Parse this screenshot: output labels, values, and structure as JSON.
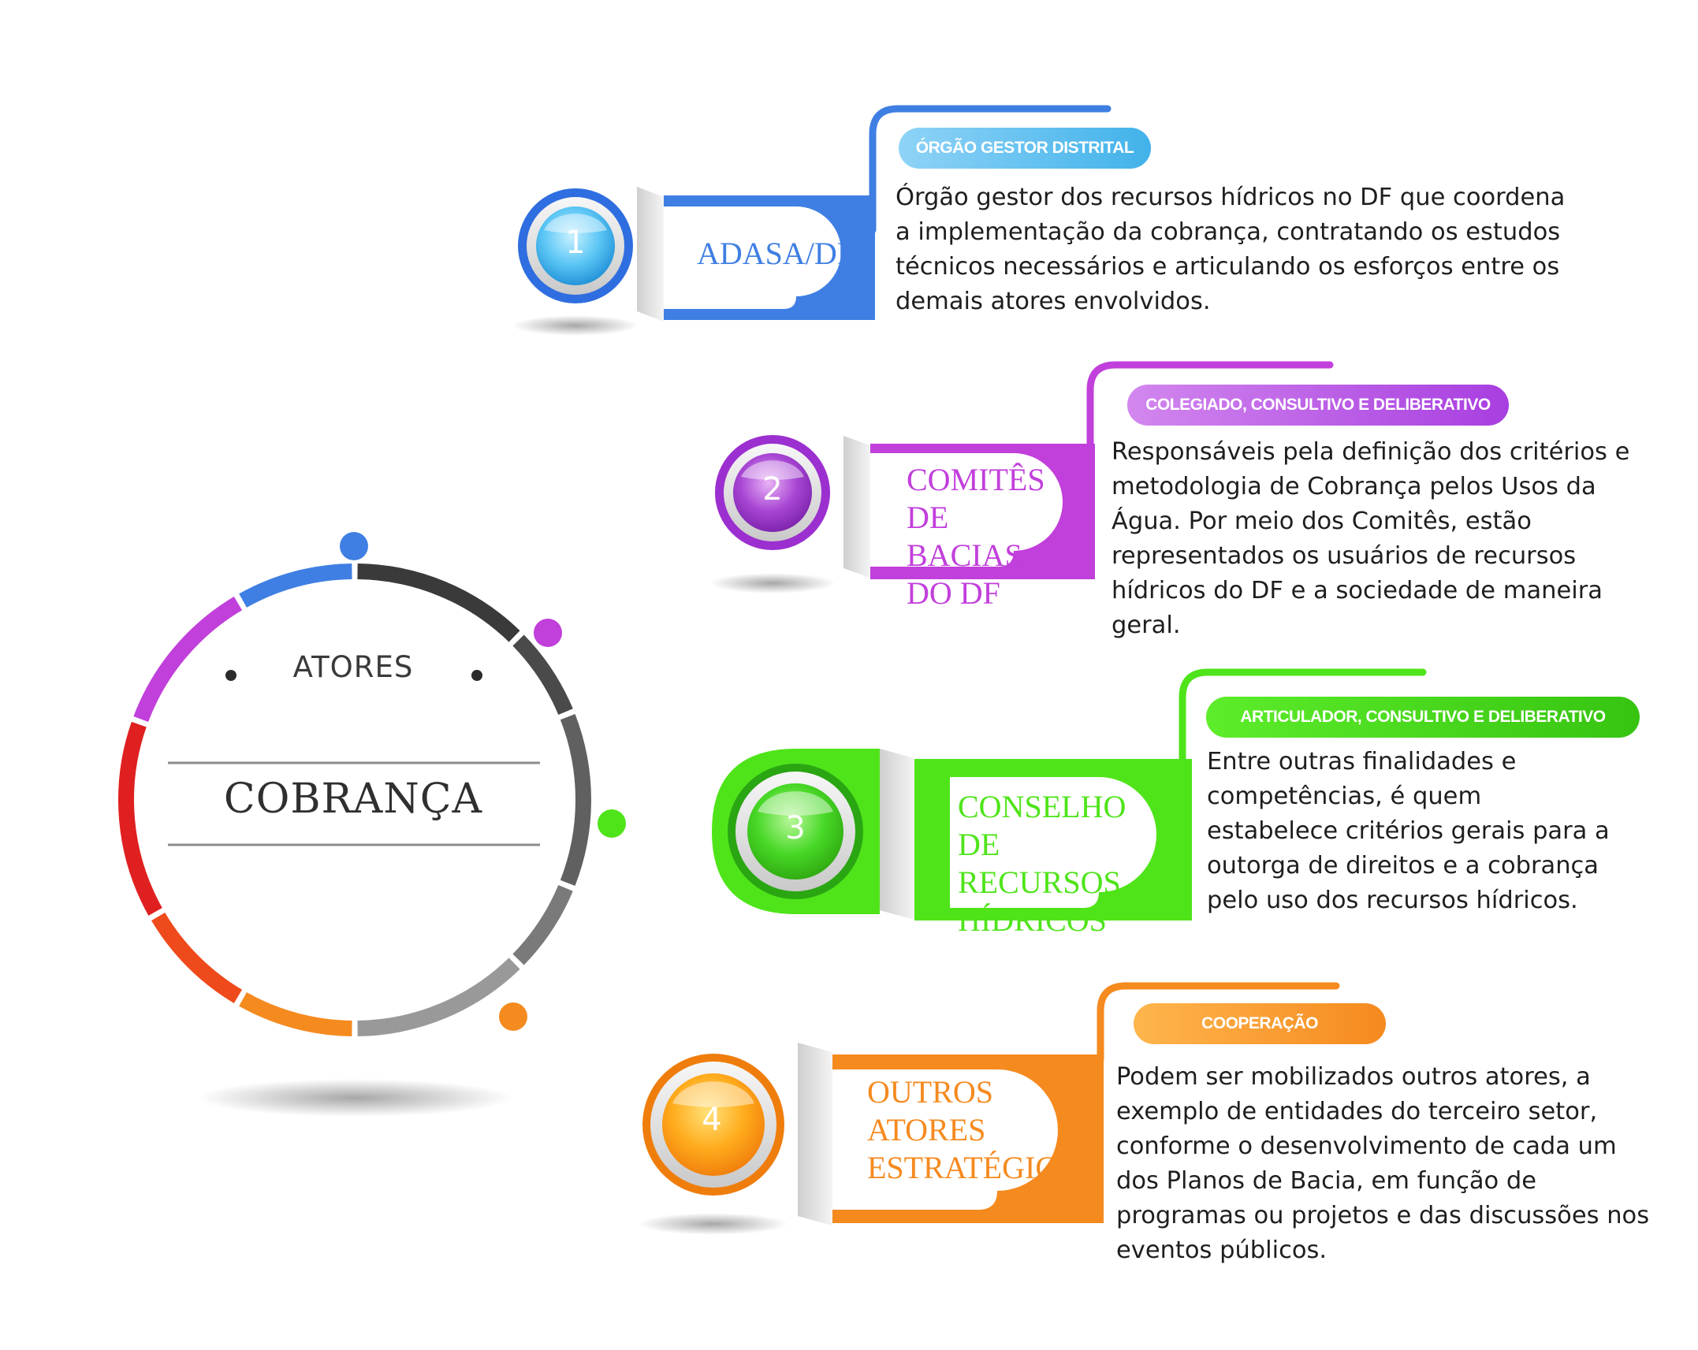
{
  "center": {
    "title": "ATORES",
    "main": "COBRANÇA"
  },
  "actors": [
    {
      "number": "1",
      "label": "ADASA/DF",
      "badge": "ÓRGÃO GESTOR DISTRITAL",
      "description": "Órgão gestor dos recursos hídricos no DF que coordena a implementação da cobrança, contratando os estudos técnicos necessários e articulando os esforços entre os demais atores envolvidos.",
      "color": "#3f7fe3"
    },
    {
      "number": "2",
      "label": "COMITÊS DE BACIAS DO DF",
      "badge": "COLEGIADO, CONSULTIVO E DELIBERATIVO",
      "description": "Responsáveis pela definição dos critérios e metodologia de Cobrança pelos Usos da Água. Por meio dos Comitês, estão representados os usuários de recursos hídricos do DF e a sociedade de maneira geral.",
      "color": "#c13fdb"
    },
    {
      "number": "3",
      "label": "CONSELHO DE RECURSOS HÍDRICOS",
      "badge": "ARTICULADOR, CONSULTIVO E DELIBERATIVO",
      "description": "Entre outras finalidades e competências, é quem estabelece critérios gerais para a outorga de direitos e a cobrança pelo uso dos recursos hídricos.",
      "color": "#4fe41a"
    },
    {
      "number": "4",
      "label": "OUTROS ATORES ESTRATÉGICOS",
      "badge": "COOPERAÇÃO",
      "description": "Podem ser mobilizados outros atores, a exemplo de entidades do terceiro setor, conforme o desenvolvimento de cada um dos Planos de Bacia, em função de programas ou projetos e das discussões nos eventos públicos.",
      "color": "#f58a1f"
    }
  ]
}
